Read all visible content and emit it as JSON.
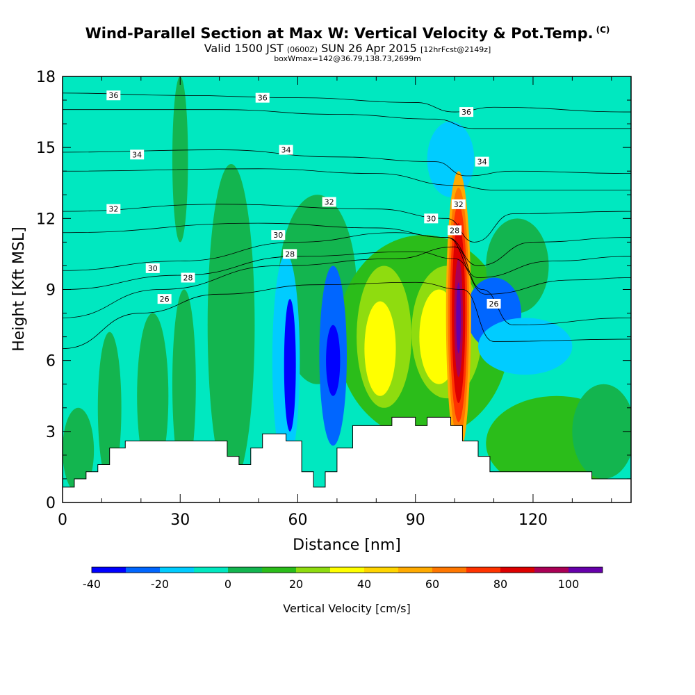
{
  "header": {
    "title": "Wind-Parallel Section at Max W: Vertical Velocity & Pot.Temp.",
    "copyright": "(C)",
    "valid_prefix": "Valid 1500 JST",
    "valid_utc": "(0600Z)",
    "valid_date": "SUN 26 Apr 2015",
    "forecast": "[12hrFcst@2149z]",
    "box_info": "boxWmax=142@36.79,138.73,2699m"
  },
  "chart_data": {
    "type": "heatmap",
    "xlabel": "Distance [nm]",
    "ylabel": "Height [Kft MSL]",
    "xlim": [
      0,
      145
    ],
    "ylim": [
      0,
      18
    ],
    "x_ticks": [
      0,
      30,
      60,
      90,
      120
    ],
    "y_ticks": [
      0,
      3,
      6,
      9,
      12,
      15,
      18
    ],
    "colorbar": {
      "label": "Vertical Velocity [cm/s]",
      "ticks": [
        -40,
        -20,
        0,
        20,
        40,
        60,
        80,
        100
      ],
      "bins": [
        {
          "from": -40,
          "to": -30,
          "color": "#0000ff"
        },
        {
          "from": -30,
          "to": -20,
          "color": "#0066ff"
        },
        {
          "from": -20,
          "to": -10,
          "color": "#00ccff"
        },
        {
          "from": -10,
          "to": 0,
          "color": "#00e8c0"
        },
        {
          "from": 0,
          "to": 10,
          "color": "#13b54f"
        },
        {
          "from": 10,
          "to": 20,
          "color": "#2bbd1a"
        },
        {
          "from": 20,
          "to": 30,
          "color": "#8fdc0f"
        },
        {
          "from": 30,
          "to": 40,
          "color": "#ffff00"
        },
        {
          "from": 40,
          "to": 50,
          "color": "#ffd500"
        },
        {
          "from": 50,
          "to": 60,
          "color": "#ffaa00"
        },
        {
          "from": 60,
          "to": 70,
          "color": "#ff7700"
        },
        {
          "from": 70,
          "to": 80,
          "color": "#ff3300"
        },
        {
          "from": 80,
          "to": 90,
          "color": "#dd0000"
        },
        {
          "from": 90,
          "to": 100,
          "color": "#aa0055"
        },
        {
          "from": 100,
          "to": 110,
          "color": "#6600aa"
        }
      ]
    },
    "background_color": "#00e8c0",
    "terrain_profile": [
      [
        0,
        0.65
      ],
      [
        3,
        0.65
      ],
      [
        3,
        1.0
      ],
      [
        6,
        1.0
      ],
      [
        6,
        1.3
      ],
      [
        9,
        1.3
      ],
      [
        9,
        1.6
      ],
      [
        12,
        1.6
      ],
      [
        12,
        2.3
      ],
      [
        16,
        2.3
      ],
      [
        16,
        2.6
      ],
      [
        42,
        2.6
      ],
      [
        42,
        1.95
      ],
      [
        45,
        1.95
      ],
      [
        45,
        1.6
      ],
      [
        48,
        1.6
      ],
      [
        48,
        2.3
      ],
      [
        51,
        2.3
      ],
      [
        51,
        2.9
      ],
      [
        57,
        2.9
      ],
      [
        57,
        2.6
      ],
      [
        61,
        2.6
      ],
      [
        61,
        1.3
      ],
      [
        64,
        1.3
      ],
      [
        64,
        0.65
      ],
      [
        67,
        0.65
      ],
      [
        67,
        1.3
      ],
      [
        70,
        1.3
      ],
      [
        70,
        2.3
      ],
      [
        74,
        2.3
      ],
      [
        74,
        3.25
      ],
      [
        84,
        3.25
      ],
      [
        84,
        3.6
      ],
      [
        90,
        3.6
      ],
      [
        90,
        3.25
      ],
      [
        93,
        3.25
      ],
      [
        93,
        3.6
      ],
      [
        99,
        3.6
      ],
      [
        99,
        3.25
      ],
      [
        102,
        3.25
      ],
      [
        102,
        2.6
      ],
      [
        106,
        2.6
      ],
      [
        106,
        1.95
      ],
      [
        109,
        1.95
      ],
      [
        109,
        1.3
      ],
      [
        135,
        1.3
      ],
      [
        135,
        1.0
      ],
      [
        145,
        1.0
      ]
    ],
    "velocity_cells": [
      {
        "cx": 4,
        "cy": 2.2,
        "rx": 4,
        "ry": 1.8,
        "value": 5
      },
      {
        "cx": 12,
        "cy": 4.0,
        "rx": 3,
        "ry": 3.2,
        "value": 5
      },
      {
        "cx": 23,
        "cy": 4.5,
        "rx": 4,
        "ry": 3.5,
        "value": 5
      },
      {
        "cx": 31,
        "cy": 5.0,
        "rx": 3,
        "ry": 4.0,
        "value": 5
      },
      {
        "cx": 43,
        "cy": 7.5,
        "rx": 6,
        "ry": 6.8,
        "value": 5
      },
      {
        "cx": 30,
        "cy": 14.5,
        "rx": 2,
        "ry": 3.5,
        "value": 5
      },
      {
        "cx": 65,
        "cy": 9.0,
        "rx": 10,
        "ry": 4.0,
        "value": 5
      },
      {
        "cx": 92,
        "cy": 7.0,
        "rx": 22,
        "ry": 4.3,
        "value": 15
      },
      {
        "cx": 82,
        "cy": 7.0,
        "rx": 7,
        "ry": 3.0,
        "value": 25
      },
      {
        "cx": 98,
        "cy": 7.2,
        "rx": 9,
        "ry": 2.8,
        "value": 25
      },
      {
        "cx": 81,
        "cy": 6.5,
        "rx": 4,
        "ry": 2.0,
        "value": 35
      },
      {
        "cx": 96,
        "cy": 7.0,
        "rx": 5,
        "ry": 2.0,
        "value": 35
      },
      {
        "cx": 126,
        "cy": 2.5,
        "rx": 18,
        "ry": 2.0,
        "value": 15
      },
      {
        "cx": 138,
        "cy": 3.0,
        "rx": 8,
        "ry": 2.0,
        "value": 5
      },
      {
        "cx": 116,
        "cy": 10.0,
        "rx": 8,
        "ry": 2.0,
        "value": 5
      },
      {
        "cx": 57,
        "cy": 6.0,
        "rx": 3.5,
        "ry": 4.5,
        "value": -15
      },
      {
        "cx": 58,
        "cy": 5.8,
        "rx": 1.5,
        "ry": 2.8,
        "value": -35
      },
      {
        "cx": 69,
        "cy": 6.2,
        "rx": 3.5,
        "ry": 3.8,
        "value": -25
      },
      {
        "cx": 69,
        "cy": 6.0,
        "rx": 1.8,
        "ry": 1.5,
        "value": -35
      },
      {
        "cx": 99,
        "cy": 14.5,
        "rx": 6,
        "ry": 1.6,
        "value": -15
      },
      {
        "cx": 110,
        "cy": 8.0,
        "rx": 7,
        "ry": 1.5,
        "value": -25
      },
      {
        "cx": 118,
        "cy": 6.6,
        "rx": 12,
        "ry": 1.2,
        "value": -15
      },
      {
        "cx": 101,
        "cy": 8.0,
        "rx": 3.2,
        "ry": 6.0,
        "value": 55
      },
      {
        "cx": 101,
        "cy": 8.0,
        "rx": 2.7,
        "ry": 5.3,
        "value": 65
      },
      {
        "cx": 101,
        "cy": 8.0,
        "rx": 2.2,
        "ry": 4.6,
        "value": 75
      },
      {
        "cx": 101,
        "cy": 8.0,
        "rx": 1.7,
        "ry": 3.8,
        "value": 85
      },
      {
        "cx": 101,
        "cy": 7.8,
        "rx": 1.1,
        "ry": 2.5,
        "value": 95
      },
      {
        "cx": 101,
        "cy": 7.8,
        "rx": 0.6,
        "ry": 1.5,
        "value": 105
      }
    ],
    "isentropes": [
      {
        "value": 36,
        "points": [
          [
            0,
            17.3
          ],
          [
            30,
            17.2
          ],
          [
            60,
            17.1
          ],
          [
            90,
            16.9
          ],
          [
            100,
            16.5
          ],
          [
            110,
            16.7
          ],
          [
            145,
            16.5
          ]
        ]
      },
      {
        "value": 36,
        "points": [
          [
            0,
            16.6
          ],
          [
            40,
            16.6
          ],
          [
            70,
            16.4
          ],
          [
            95,
            16.2
          ],
          [
            105,
            15.8
          ],
          [
            145,
            15.8
          ]
        ]
      },
      {
        "value": 34,
        "points": [
          [
            0,
            14.8
          ],
          [
            40,
            14.9
          ],
          [
            70,
            14.6
          ],
          [
            95,
            14.4
          ],
          [
            103,
            13.8
          ],
          [
            115,
            14.0
          ],
          [
            145,
            13.9
          ]
        ]
      },
      {
        "value": 34,
        "points": [
          [
            0,
            14.0
          ],
          [
            50,
            14.1
          ],
          [
            80,
            13.9
          ],
          [
            100,
            13.4
          ],
          [
            110,
            13.2
          ],
          [
            145,
            13.2
          ]
        ]
      },
      {
        "value": 32,
        "points": [
          [
            0,
            12.3
          ],
          [
            40,
            12.6
          ],
          [
            80,
            12.4
          ],
          [
            98,
            12.0
          ],
          [
            105,
            11.0
          ],
          [
            115,
            12.2
          ],
          [
            145,
            12.3
          ]
        ]
      },
      {
        "value": 32,
        "points": [
          [
            0,
            11.4
          ],
          [
            50,
            11.8
          ],
          [
            80,
            11.6
          ],
          [
            98,
            11.2
          ],
          [
            106,
            10.0
          ],
          [
            120,
            11.0
          ],
          [
            145,
            11.2
          ]
        ]
      },
      {
        "value": 30,
        "points": [
          [
            0,
            9.8
          ],
          [
            30,
            10.2
          ],
          [
            60,
            11.0
          ],
          [
            85,
            11.4
          ],
          [
            98,
            11.2
          ],
          [
            106,
            9.5
          ],
          [
            125,
            10.2
          ],
          [
            145,
            10.4
          ]
        ]
      },
      {
        "value": 30,
        "points": [
          [
            0,
            9.0
          ],
          [
            30,
            9.6
          ],
          [
            60,
            10.4
          ],
          [
            90,
            10.6
          ],
          [
            100,
            10.3
          ],
          [
            108,
            8.8
          ],
          [
            130,
            9.4
          ],
          [
            145,
            9.5
          ]
        ]
      },
      {
        "value": 28,
        "points": [
          [
            0,
            7.8
          ],
          [
            25,
            9.0
          ],
          [
            55,
            10.0
          ],
          [
            85,
            10.3
          ],
          [
            100,
            10.8
          ],
          [
            107,
            9.0
          ],
          [
            115,
            7.5
          ],
          [
            145,
            7.8
          ]
        ]
      },
      {
        "value": 26,
        "points": [
          [
            0,
            6.5
          ],
          [
            20,
            8.0
          ],
          [
            40,
            8.8
          ],
          [
            65,
            9.2
          ],
          [
            90,
            9.3
          ],
          [
            102,
            9.0
          ],
          [
            110,
            6.8
          ],
          [
            145,
            6.9
          ]
        ]
      }
    ],
    "contour_labels": [
      {
        "x": 13,
        "y": 17.2,
        "text": "36"
      },
      {
        "x": 51,
        "y": 17.1,
        "text": "36"
      },
      {
        "x": 103,
        "y": 16.5,
        "text": "36"
      },
      {
        "x": 19,
        "y": 14.7,
        "text": "34"
      },
      {
        "x": 57,
        "y": 14.9,
        "text": "34"
      },
      {
        "x": 107,
        "y": 14.4,
        "text": "34"
      },
      {
        "x": 13,
        "y": 12.4,
        "text": "32"
      },
      {
        "x": 68,
        "y": 12.7,
        "text": "32"
      },
      {
        "x": 101,
        "y": 12.6,
        "text": "32"
      },
      {
        "x": 55,
        "y": 11.3,
        "text": "30"
      },
      {
        "x": 23,
        "y": 9.9,
        "text": "30"
      },
      {
        "x": 94,
        "y": 12.0,
        "text": "30"
      },
      {
        "x": 58,
        "y": 10.5,
        "text": "28"
      },
      {
        "x": 32,
        "y": 9.5,
        "text": "28"
      },
      {
        "x": 100,
        "y": 11.5,
        "text": "28"
      },
      {
        "x": 26,
        "y": 8.6,
        "text": "26"
      },
      {
        "x": 110,
        "y": 8.4,
        "text": "26"
      }
    ]
  }
}
